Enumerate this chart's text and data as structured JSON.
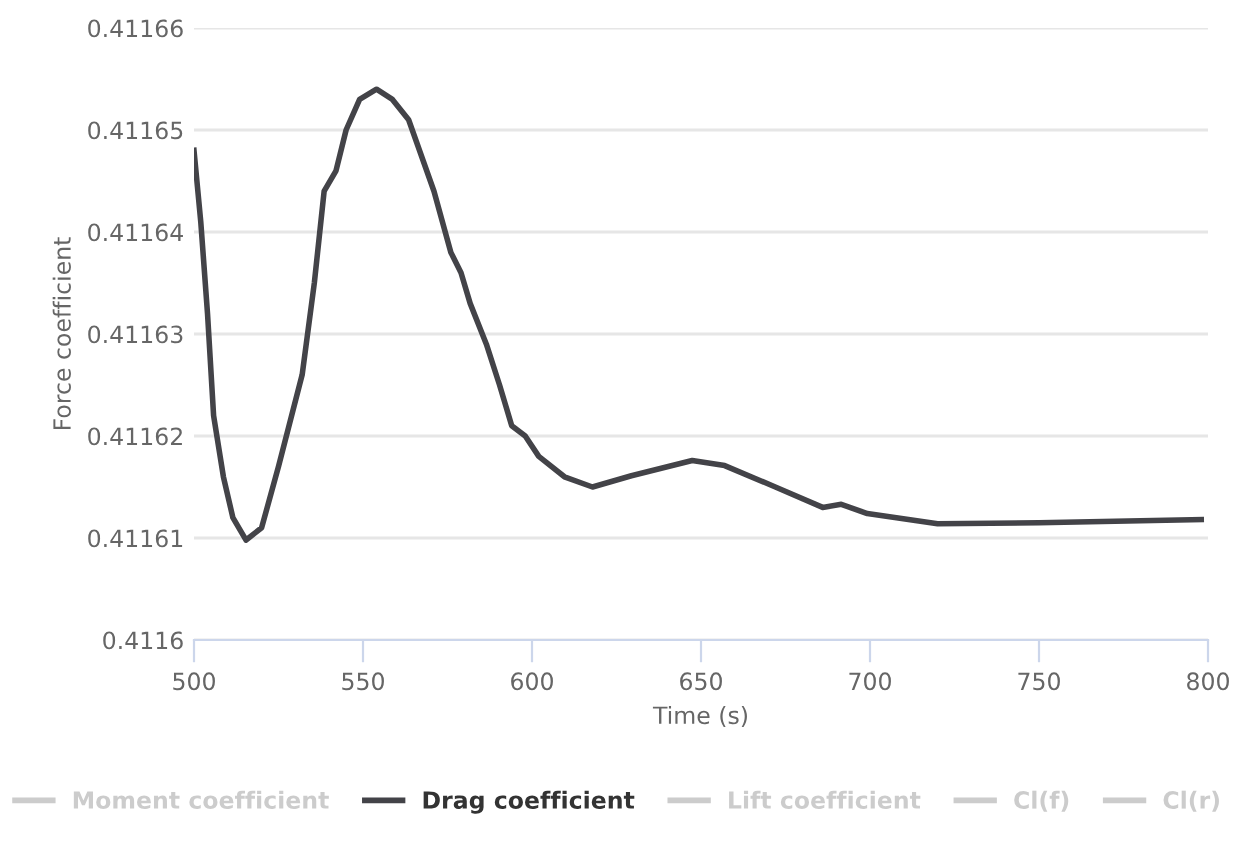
{
  "chart_data": {
    "type": "line",
    "xlabel": "Time (s)",
    "ylabel": "Force coefficient",
    "xlim": [
      500,
      800
    ],
    "xticks": [
      500,
      550,
      600,
      650,
      700,
      750,
      800
    ],
    "ylim": [
      0.4116,
      0.41166
    ],
    "yticks": [
      {
        "value": 0.4116,
        "label": "0.4116"
      },
      0.41161,
      0.41162,
      0.41163,
      0.41164,
      0.41165,
      0.41166
    ],
    "grid": "y",
    "legend": "bottom",
    "marker": "none",
    "line_style": "solid",
    "series": [
      {
        "name": "Moment coefficient",
        "color": "#cccccc"
      },
      {
        "name": "Drag coefficient",
        "color": "#434348",
        "x": [
          500,
          502,
          504,
          505.8,
          508.7,
          511.5,
          515.4,
          520,
          525,
          532,
          535.6,
          538.5,
          542,
          545,
          549,
          554,
          558.7,
          563.5,
          571,
          576,
          579,
          581.7,
          586.5,
          590.4,
          594,
          598,
          602,
          609.6,
          617.9,
          629.4,
          647.4,
          657,
          672,
          686,
          691.5,
          699.2,
          720,
          750,
          798
        ],
        "values": [
          0.411648,
          0.411641,
          0.411632,
          0.411622,
          0.411616,
          0.411612,
          0.4116098,
          0.411611,
          0.411617,
          0.411626,
          0.411635,
          0.411644,
          0.411646,
          0.41165,
          0.411653,
          0.411654,
          0.411653,
          0.411651,
          0.411644,
          0.411638,
          0.411636,
          0.411633,
          0.411629,
          0.411625,
          0.411621,
          0.41162,
          0.411618,
          0.411616,
          0.411615,
          0.4116161,
          0.4116176,
          0.4116171,
          0.411615,
          0.411613,
          0.4116133,
          0.4116124,
          0.4116114,
          0.4116115,
          0.4116118
        ]
      },
      {
        "name": "Lift coefficient",
        "color": "#cccccc"
      },
      {
        "name": "Cl(f)",
        "color": "#cccccc"
      },
      {
        "name": "Cl(r)",
        "color": "#cccccc"
      }
    ]
  }
}
